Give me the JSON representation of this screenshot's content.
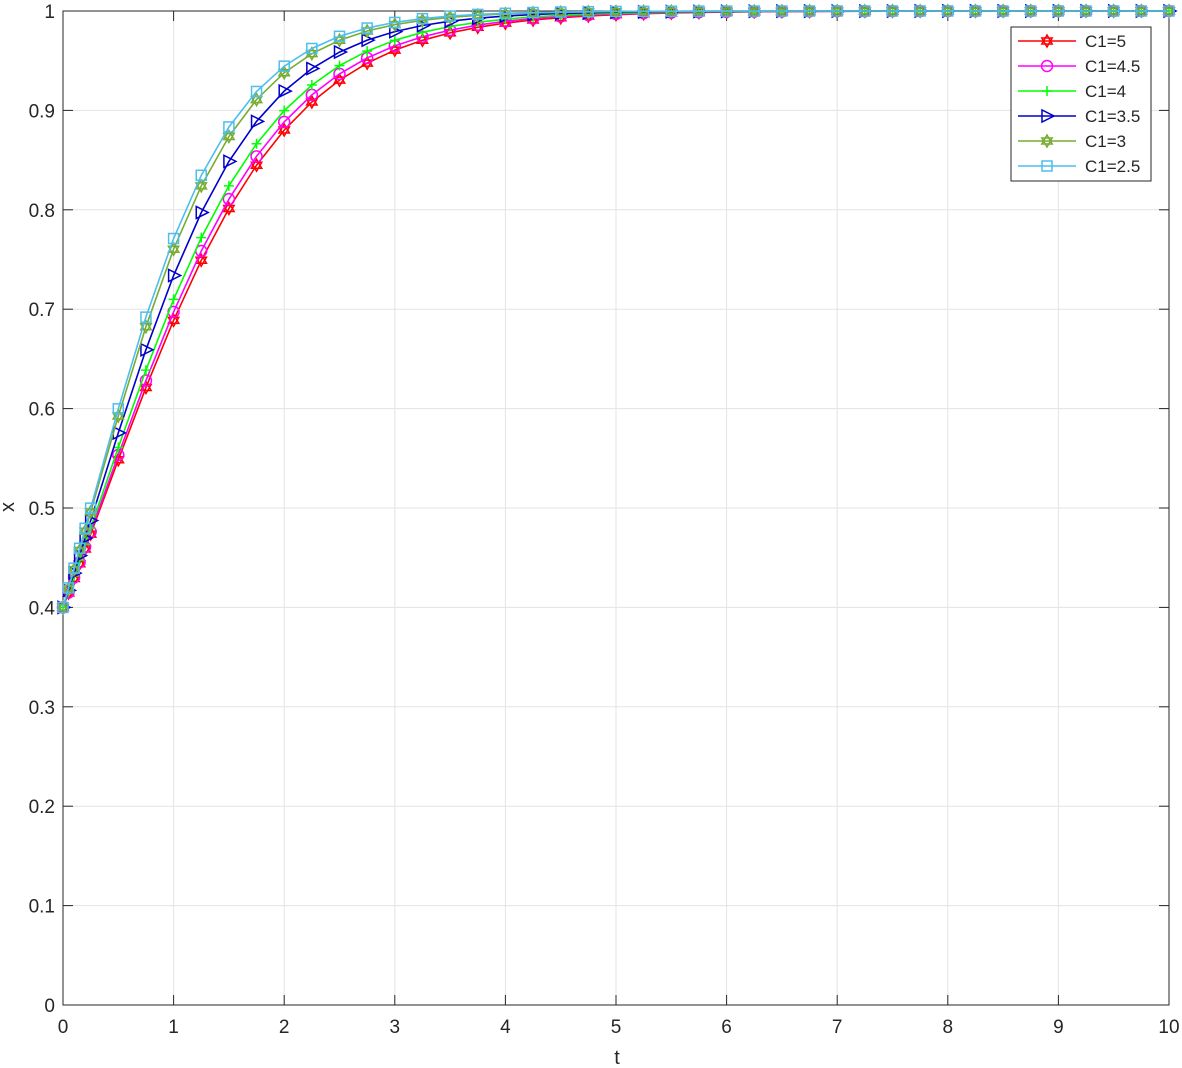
{
  "chart_data": {
    "type": "line",
    "title": "",
    "xlabel": "t",
    "ylabel": "x",
    "xlim": [
      0,
      10
    ],
    "ylim": [
      0,
      1
    ],
    "xticks": [
      0,
      1,
      2,
      3,
      4,
      5,
      6,
      7,
      8,
      9,
      10
    ],
    "yticks": [
      0,
      0.1,
      0.2,
      0.3,
      0.4,
      0.5,
      0.6,
      0.7,
      0.8,
      0.9,
      1
    ],
    "xtick_labels": [
      "0",
      "1",
      "2",
      "3",
      "4",
      "5",
      "6",
      "7",
      "8",
      "9",
      "10"
    ],
    "ytick_labels": [
      "0",
      "0.1",
      "0.2",
      "0.3",
      "0.4",
      "0.5",
      "0.6",
      "0.7",
      "0.8",
      "0.9",
      "1"
    ],
    "grid": true,
    "legend_position": "top-right",
    "series": [
      {
        "name": "C1=5",
        "color": "#ff0000",
        "marker": "hexagram",
        "x0": 0.4,
        "rate": 1.2
      },
      {
        "name": "C1=4.5",
        "color": "#ff00ff",
        "marker": "circle",
        "x0": 0.4,
        "rate": 1.24
      },
      {
        "name": "C1=4",
        "color": "#00ff00",
        "marker": "plus",
        "x0": 0.4,
        "rate": 1.3
      },
      {
        "name": "C1=3.5",
        "color": "#0000cc",
        "marker": "triangle-right",
        "x0": 0.4,
        "rate": 1.42
      },
      {
        "name": "C1=3",
        "color": "#77ac30",
        "marker": "hexagram",
        "x0": 0.4,
        "rate": 1.56
      },
      {
        "name": "C1=2.5",
        "color": "#4dbeee",
        "marker": "square",
        "x0": 0.4,
        "rate": 1.62
      }
    ]
  }
}
